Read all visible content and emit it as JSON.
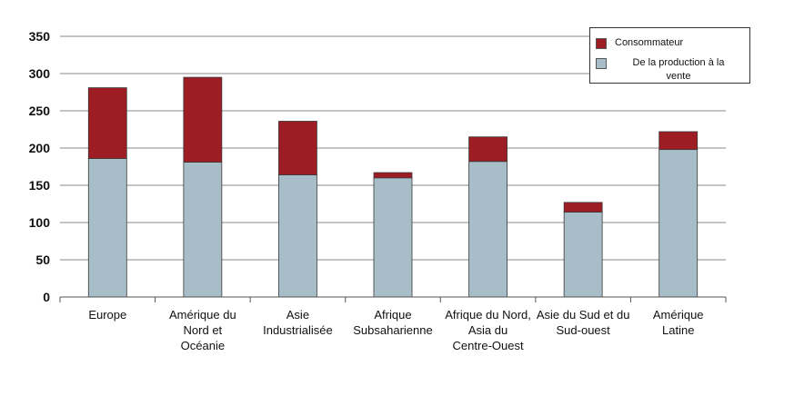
{
  "chart_data": {
    "type": "bar",
    "stacked": true,
    "categories": [
      "Europe",
      "Amérique du Nord et Océanie",
      "Asie Industrialisée",
      "Afrique Subsaharienne",
      "Afrique du Nord, Asia du Centre-Ouest",
      "Asie du Sud et du Sud-ouest",
      "Amérique Latine"
    ],
    "category_lines": [
      [
        "Europe"
      ],
      [
        "Amérique du",
        "Nord et",
        "Océanie"
      ],
      [
        "Asie",
        "Industrialisée"
      ],
      [
        "Afrique",
        "Subsaharienne"
      ],
      [
        "Afrique du Nord,",
        "Asia du",
        "Centre-Ouest"
      ],
      [
        "Asie du Sud et du",
        "Sud-ouest"
      ],
      [
        "Amérique",
        "Latine"
      ]
    ],
    "series": [
      {
        "name": "De la production à la vente",
        "color": "#a7bec8",
        "values": [
          186,
          181,
          164,
          160,
          182,
          114,
          198
        ]
      },
      {
        "name": "Consommateur",
        "color": "#9e1c24",
        "values": [
          95,
          114,
          72,
          7,
          33,
          13,
          24
        ]
      }
    ],
    "ylim": [
      0,
      350
    ],
    "yticks": [
      0,
      50,
      100,
      150,
      200,
      250,
      300,
      350
    ],
    "grid": true,
    "legend_position": "top-right",
    "legend": {
      "items": [
        {
          "label": "Consommateur",
          "color": "#9e1c24"
        },
        {
          "label": "De la production à la",
          "label2": "vente",
          "color": "#a7bec8"
        }
      ]
    }
  }
}
